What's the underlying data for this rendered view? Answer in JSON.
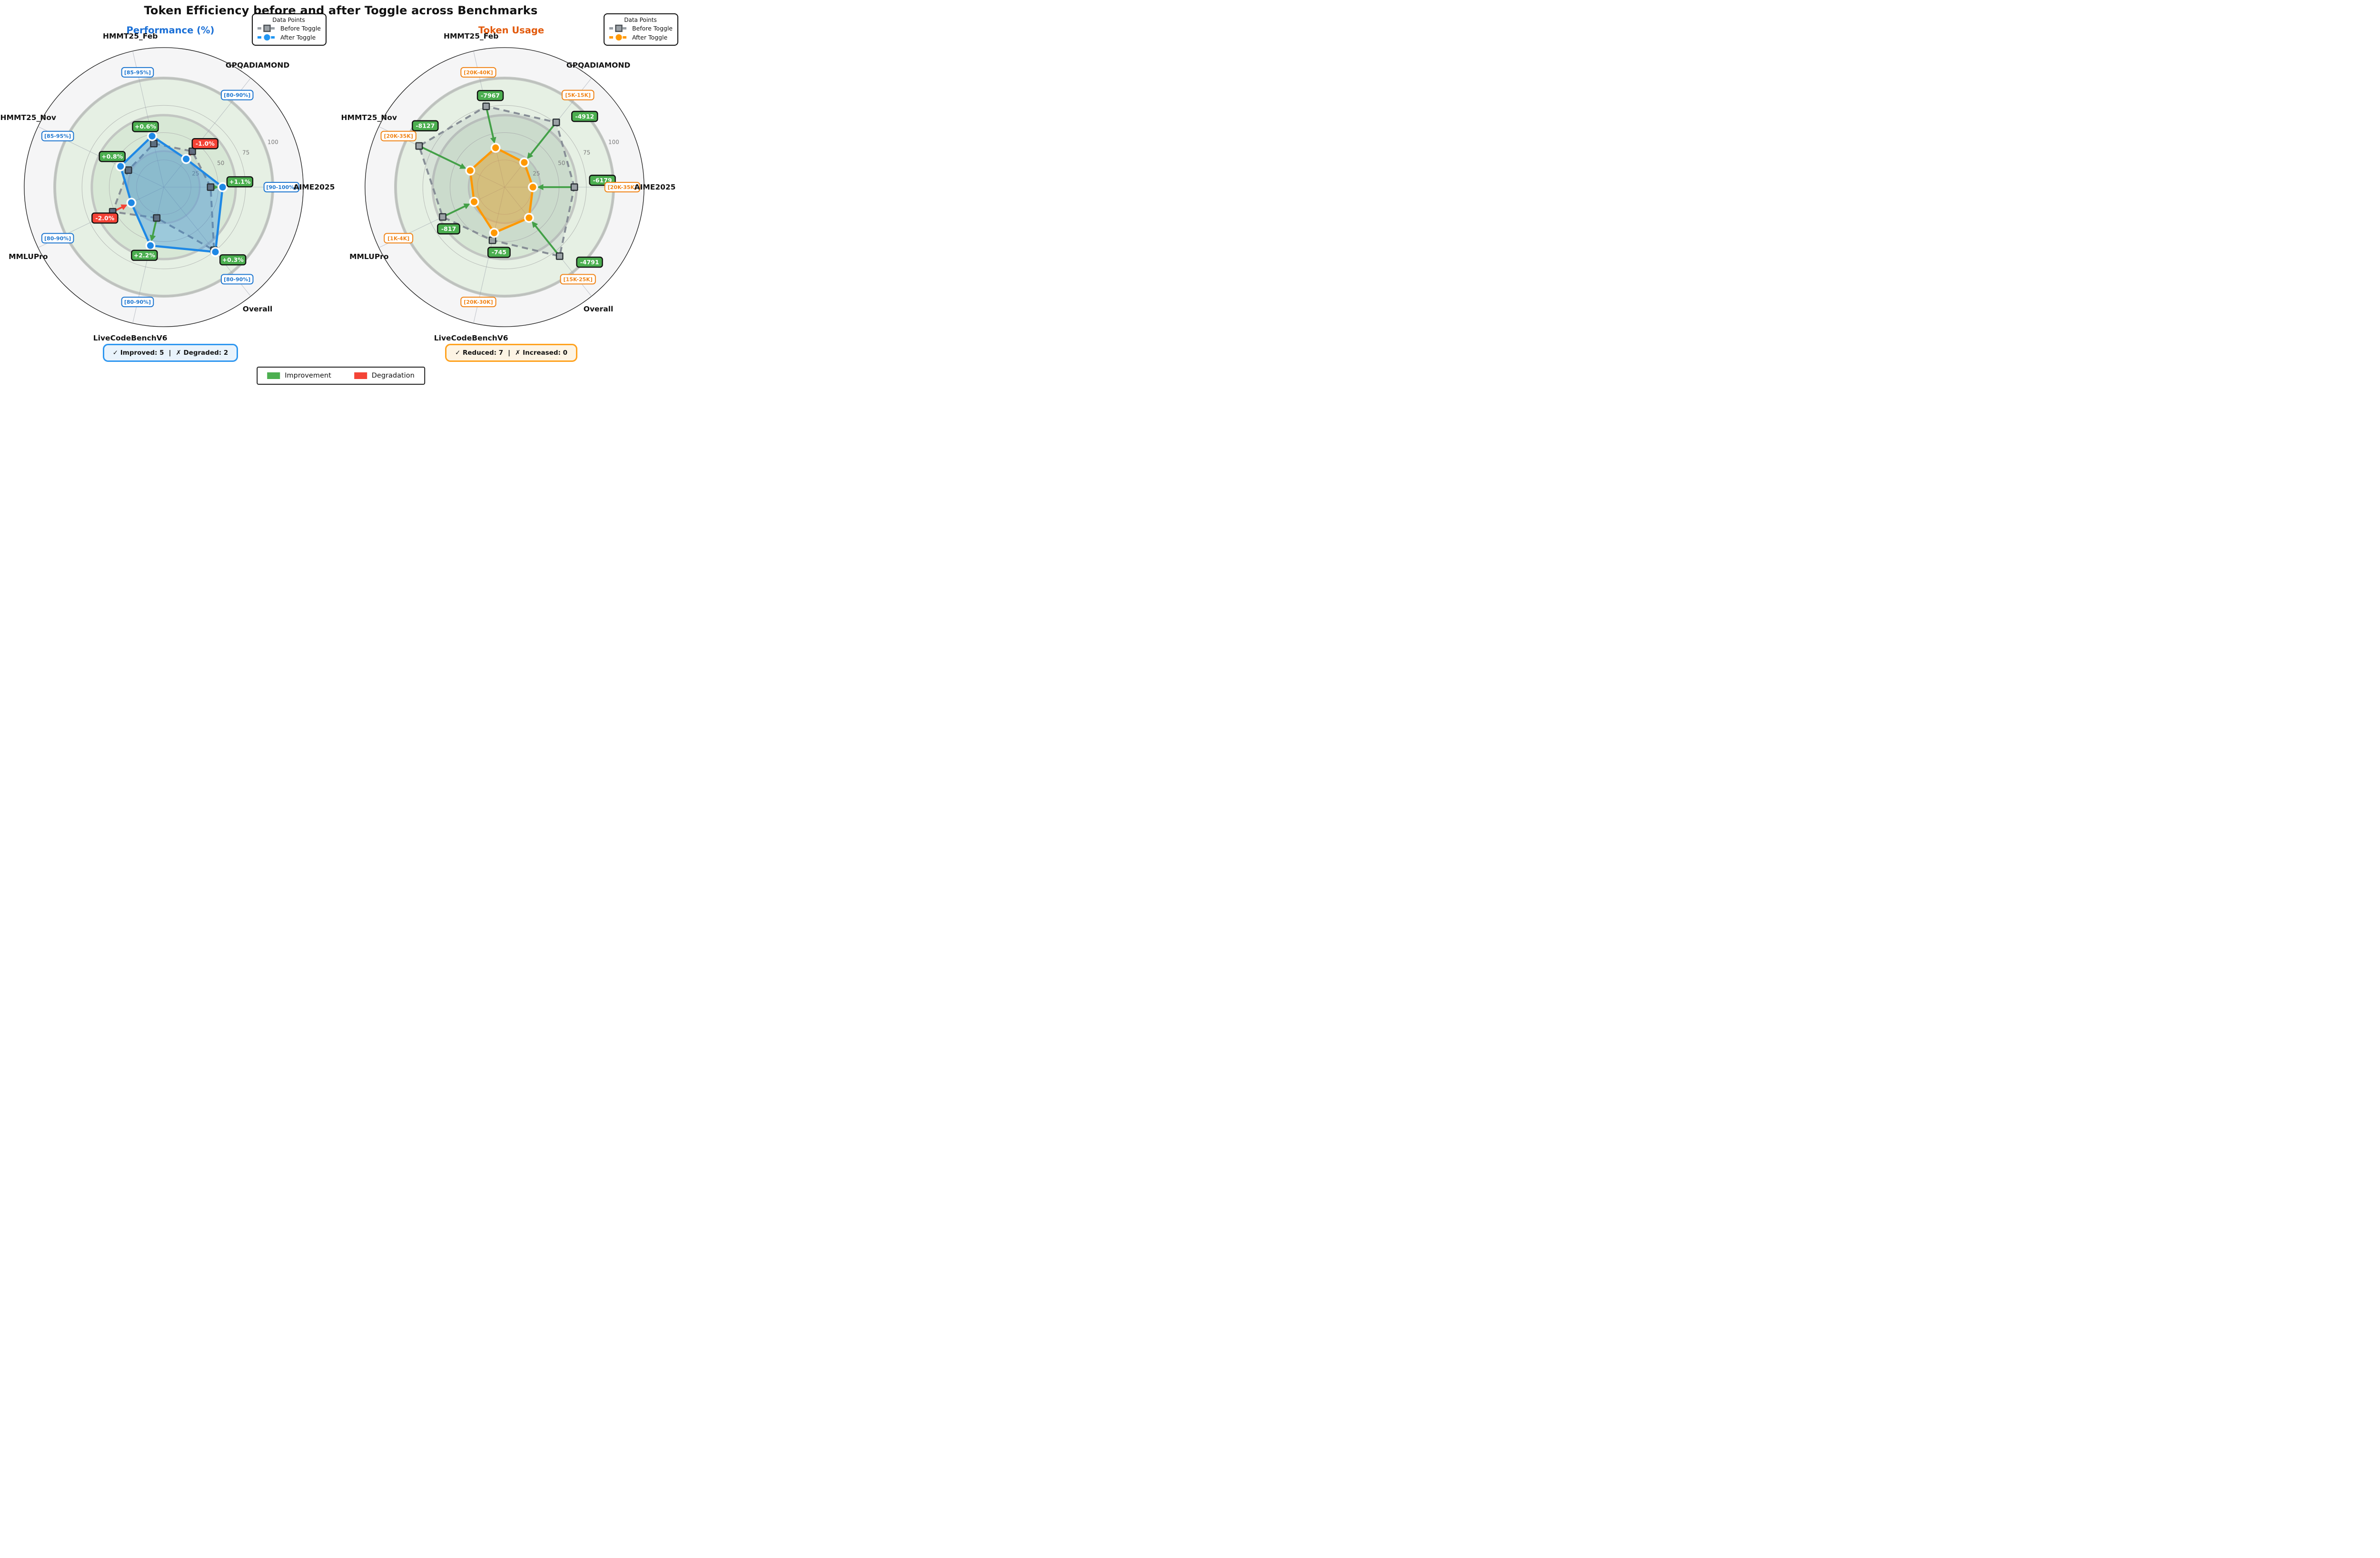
{
  "main_title": "Token Efficiency before and after Toggle across Benchmarks",
  "radial_ticks": [
    25,
    50,
    75,
    100
  ],
  "improvement_color": "#4caf50",
  "degradation_color": "#f44336",
  "delta_legend": {
    "items": [
      {
        "label": "Improvement",
        "color": "#4caf50"
      },
      {
        "label": "Degradation",
        "color": "#f44336"
      }
    ]
  },
  "chart_data": [
    {
      "type": "radar",
      "id": "performance",
      "title": "Performance (%)",
      "title_color": "#1a6fd6",
      "accent": "#2196f3",
      "line_color": "#1e88e5",
      "fill_color": "rgba(30,136,229,0.32)",
      "before_marker_fill": "#5d6c80",
      "range_text_color": "#1f77d0",
      "legend": {
        "title": "Data Points",
        "items": [
          {
            "label": "Before Toggle",
            "marker": "square",
            "color": "#9aa0a5"
          },
          {
            "label": "After Toggle",
            "marker": "circle",
            "color": "#2196f3"
          }
        ]
      },
      "axes": [
        {
          "name": "AIME2025",
          "range": "[90-100%]",
          "before": 43,
          "after": 54,
          "delta": "+1.1%",
          "delta_type": "improvement"
        },
        {
          "name": "GPQADIAMOND",
          "range": "[80-90%]",
          "before": 42,
          "after": 33,
          "delta": "-1.0%",
          "delta_type": "degradation"
        },
        {
          "name": "HMMT25_Feb",
          "range": "[85-95%]",
          "before": 41,
          "after": 48,
          "delta": "+0.6%",
          "delta_type": "improvement"
        },
        {
          "name": "HMMT25_Nov",
          "range": "[85-95%]",
          "before": 36,
          "after": 44,
          "delta": "+0.8%",
          "delta_type": "improvement"
        },
        {
          "name": "MMLUPro",
          "range": "[80-90%]",
          "before": 52,
          "after": 33,
          "delta": "-2.0%",
          "delta_type": "degradation"
        },
        {
          "name": "LiveCodeBenchV6",
          "range": "[80-90%]",
          "before": 29,
          "after": 55,
          "delta": "+2.2%",
          "delta_type": "improvement"
        },
        {
          "name": "Overall",
          "range": "[80-90%]",
          "before": 74,
          "after": 76,
          "delta": "+0.3%",
          "delta_type": "improvement"
        }
      ],
      "summary": {
        "improved": "✓ Improved: 5",
        "divider": "|",
        "degraded": "✗ Degraded: 2",
        "bg": "#e9f3fc",
        "border": "#2f97f0"
      }
    },
    {
      "type": "radar",
      "id": "token-usage",
      "title": "Token Usage",
      "title_color": "#e2590b",
      "accent": "#ff9800",
      "line_color": "#ff9800",
      "fill_color": "rgba(255,152,0,0.35)",
      "before_marker_fill": "#9aa0a5",
      "range_text_color": "#f08519",
      "legend": {
        "title": "Data Points",
        "items": [
          {
            "label": "Before Toggle",
            "marker": "square",
            "color": "#9aa0a5"
          },
          {
            "label": "After Toggle",
            "marker": "circle",
            "color": "#ff9800"
          }
        ]
      },
      "axes": [
        {
          "name": "AIME2025",
          "range": "[20K-35K]",
          "before": 64,
          "after": 26,
          "delta": "-6179",
          "delta_type": "improvement"
        },
        {
          "name": "GPQADIAMOND",
          "range": "[5K-15K]",
          "before": 76,
          "after": 29,
          "delta": "-4912",
          "delta_type": "improvement"
        },
        {
          "name": "HMMT25_Feb",
          "range": "[20K-40K]",
          "before": 76,
          "after": 37,
          "delta": "-7967",
          "delta_type": "improvement"
        },
        {
          "name": "HMMT25_Nov",
          "range": "[20K-35K]",
          "before": 87,
          "after": 35,
          "delta": "-8127",
          "delta_type": "improvement"
        },
        {
          "name": "MMLUPro",
          "range": "[1K-4K]",
          "before": 63,
          "after": 31,
          "delta": "-817",
          "delta_type": "improvement"
        },
        {
          "name": "LiveCodeBenchV6",
          "range": "[20K-30K]",
          "before": 50,
          "after": 43,
          "delta": "-745",
          "delta_type": "improvement"
        },
        {
          "name": "Overall",
          "range": "[15K-25K]",
          "before": 81,
          "after": 36,
          "delta": "-4791",
          "delta_type": "improvement"
        }
      ],
      "summary": {
        "improved": "✓ Reduced: 7",
        "divider": "|",
        "degraded": "✗ Increased: 0",
        "bg": "#fdf4e4",
        "border": "#ffa21f"
      }
    }
  ]
}
